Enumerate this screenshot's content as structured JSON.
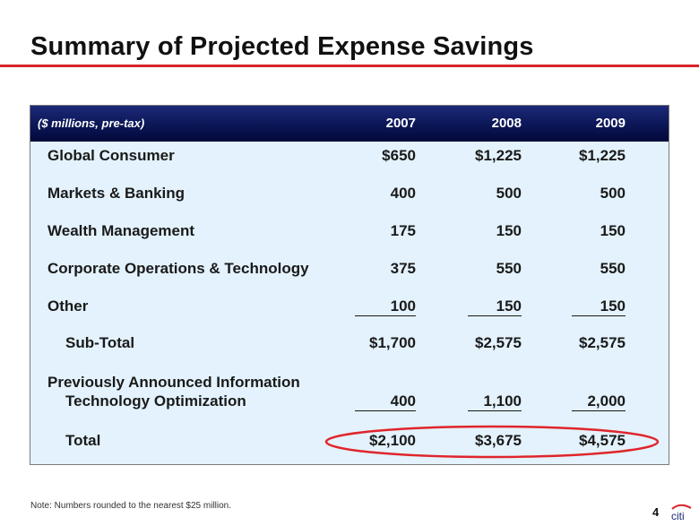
{
  "slide": {
    "title": "Summary of Projected Expense Savings",
    "page_number": "4",
    "note": "Note: Numbers rounded to the nearest $25 million.",
    "logo_text": "citi"
  },
  "table": {
    "units_label": "($ millions, pre-tax)",
    "years": [
      "2007",
      "2008",
      "2009"
    ],
    "rows": [
      {
        "label": "Global Consumer",
        "values": [
          "$650",
          "$1,225",
          "$1,225"
        ]
      },
      {
        "label": "Markets & Banking",
        "values": [
          "400",
          "500",
          "500"
        ]
      },
      {
        "label": "Wealth Management",
        "values": [
          "175",
          "150",
          "150"
        ]
      },
      {
        "label": "Corporate Operations & Technology",
        "values": [
          "375",
          "550",
          "550"
        ]
      },
      {
        "label": "Other",
        "values": [
          "100",
          "150",
          "150"
        ]
      },
      {
        "label": "Sub-Total",
        "values": [
          "$1,700",
          "$2,575",
          "$2,575"
        ]
      },
      {
        "label_line1": "Previously Announced Information",
        "label_line2": "Technology Optimization",
        "values": [
          "400",
          "1,100",
          "2,000"
        ]
      },
      {
        "label": "Total",
        "values": [
          "$2,100",
          "$3,675",
          "$4,575"
        ]
      }
    ]
  },
  "colors": {
    "accent_red": "#d9252b",
    "header_navy": "#0b1656",
    "table_bg": "#e3f2fc"
  }
}
